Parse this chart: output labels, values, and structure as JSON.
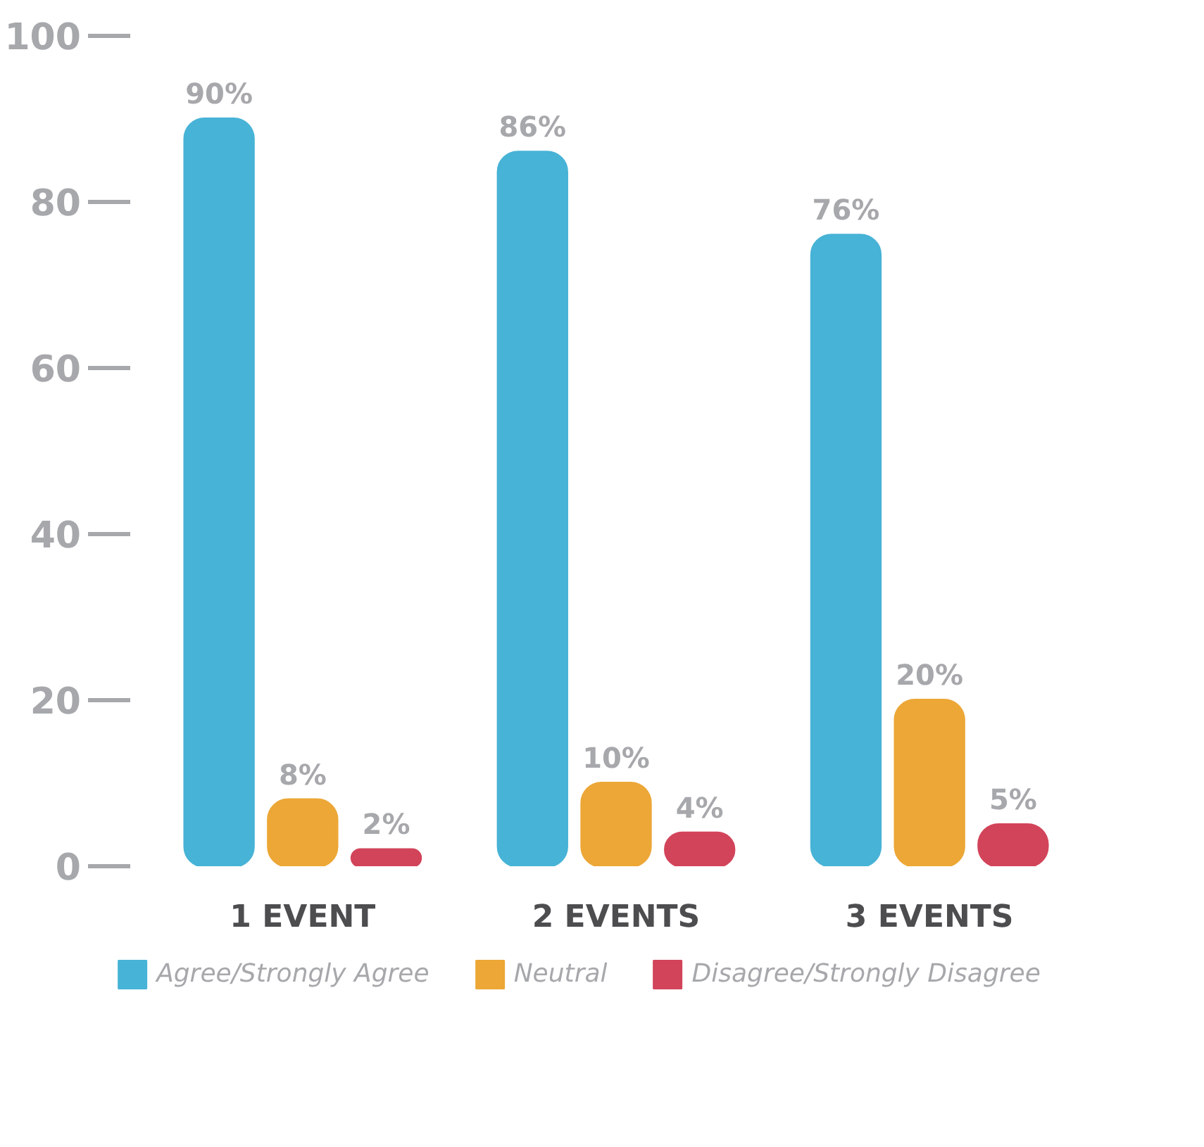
{
  "chart_data": {
    "type": "bar",
    "categories": [
      "1 EVENT",
      "2 EVENTS",
      "3 EVENTS"
    ],
    "series": [
      {
        "name": "Agree/Strongly Agree",
        "color": "#47b3d6",
        "values": [
          90,
          86,
          76
        ],
        "value_labels": [
          "90%",
          "86%",
          "76%"
        ]
      },
      {
        "name": "Neutral",
        "color": "#eca736",
        "values": [
          8,
          10,
          20
        ],
        "value_labels": [
          "8%",
          "10%",
          "20%"
        ]
      },
      {
        "name": "Disagree/Strongly Disagree",
        "color": "#d2445a",
        "values": [
          2,
          4,
          5
        ],
        "value_labels": [
          "2%",
          "4%",
          "5%"
        ]
      }
    ],
    "ylim": [
      0,
      100
    ],
    "yticks": [
      0,
      20,
      40,
      60,
      80,
      100
    ],
    "grid": false,
    "legend": "bottom"
  }
}
